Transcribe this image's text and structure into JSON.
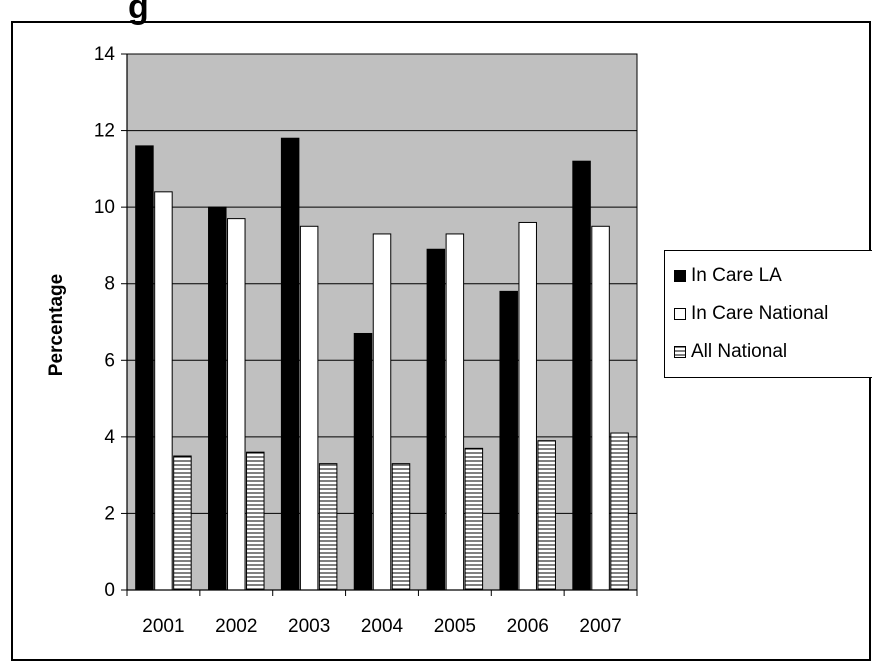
{
  "title": "g",
  "chart_data": {
    "type": "bar",
    "title": "",
    "xlabel": "",
    "ylabel": "Percentage",
    "ylim": [
      0,
      14
    ],
    "yticks": [
      0,
      2,
      4,
      6,
      8,
      10,
      12,
      14
    ],
    "grid": true,
    "legend_position": "right",
    "categories": [
      "2001",
      "2002",
      "2003",
      "2004",
      "2005",
      "2006",
      "2007"
    ],
    "series": [
      {
        "name": "In Care LA",
        "values": [
          11.6,
          10.0,
          11.8,
          6.7,
          8.9,
          7.8,
          11.2
        ],
        "fill": "#000000"
      },
      {
        "name": "In Care National",
        "values": [
          10.4,
          9.7,
          9.5,
          9.3,
          9.3,
          9.6,
          9.5
        ],
        "fill": "#ffffff"
      },
      {
        "name": "All National",
        "values": [
          3.5,
          3.6,
          3.3,
          3.3,
          3.7,
          3.9,
          4.1
        ],
        "fill": "hatch"
      }
    ],
    "plot_background": "#c0c0c0"
  }
}
